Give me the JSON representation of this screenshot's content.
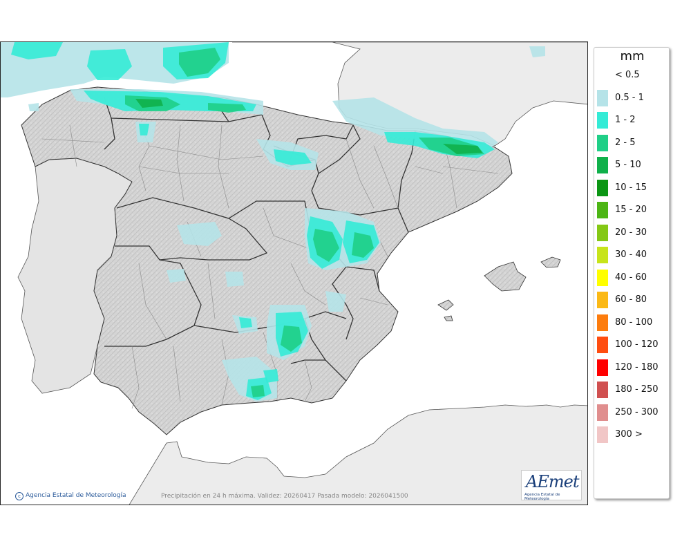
{
  "map": {
    "caption": "Precipitación en 24 h máxima. Validez: 20260417 Pasada modelo: 2026041500",
    "credit": "Agencia Estatal de Meteorología",
    "logo_text": "AEmet",
    "logo_subtext": "Agencia Estatal de Meteorología"
  },
  "legend": {
    "unit": "mm",
    "items": [
      {
        "label": "< 0.5",
        "color": "#ffffff"
      },
      {
        "label": "0.5 - 1",
        "color": "#b5e3e8"
      },
      {
        "label": "1 - 2",
        "color": "#34ebd6"
      },
      {
        "label": "2 - 5",
        "color": "#1fcf87"
      },
      {
        "label": "5 - 10",
        "color": "#0fb04a"
      },
      {
        "label": "10 - 15",
        "color": "#0b9614"
      },
      {
        "label": "15 - 20",
        "color": "#4cb515"
      },
      {
        "label": "20 - 30",
        "color": "#84c815"
      },
      {
        "label": "30 - 40",
        "color": "#c7e41a"
      },
      {
        "label": "40 - 60",
        "color": "#ffff00"
      },
      {
        "label": "60 - 80",
        "color": "#fbb916"
      },
      {
        "label": "80 - 100",
        "color": "#fd7c0d"
      },
      {
        "label": "100 - 120",
        "color": "#ff4d10"
      },
      {
        "label": "120 - 180",
        "color": "#ff0000"
      },
      {
        "label": "180 - 250",
        "color": "#d05050"
      },
      {
        "label": "250 - 300",
        "color": "#e08e8e"
      },
      {
        "label": "300 >",
        "color": "#f1c6c6"
      }
    ]
  }
}
